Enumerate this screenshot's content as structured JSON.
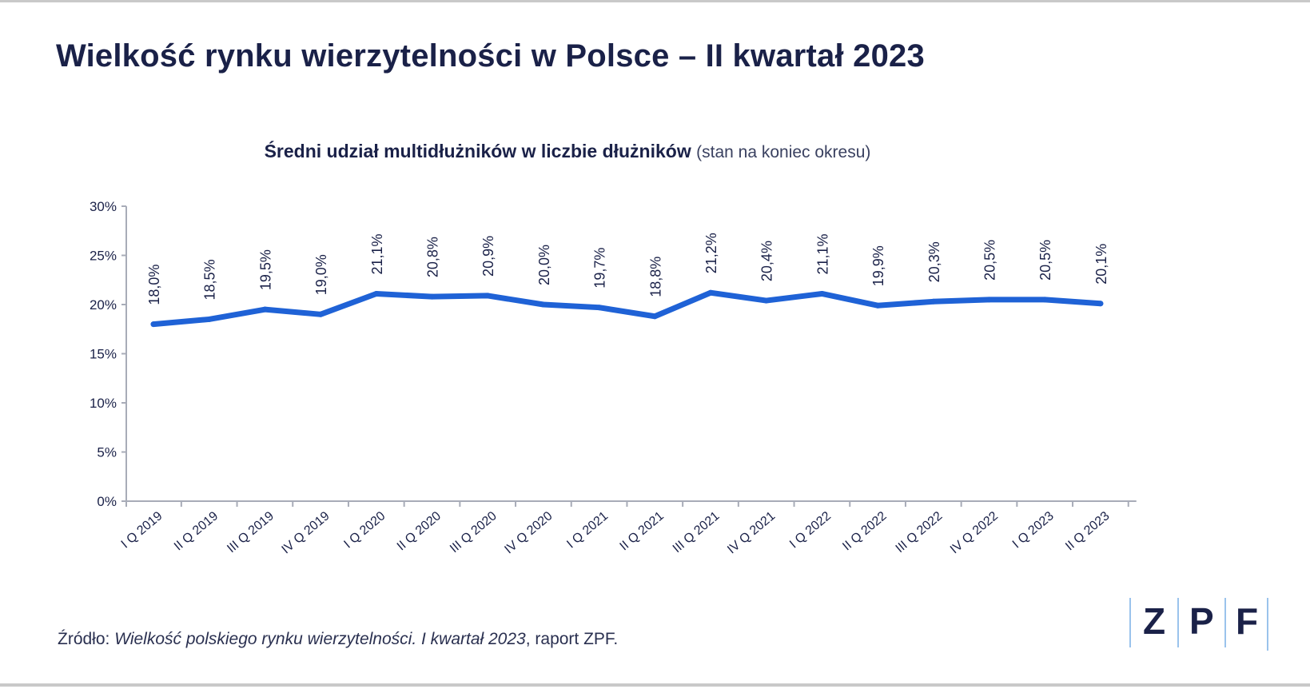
{
  "title": "Wielkość rynku wierzytelności w Polsce – II kwartał 2023",
  "chart_data": {
    "type": "line",
    "title_bold": "Średni udział multidłużników w liczbie dłużników",
    "title_note": "(stan na koniec okresu)",
    "categories": [
      "I Q 2019",
      "II Q 2019",
      "III Q 2019",
      "IV Q 2019",
      "I Q 2020",
      "II Q 2020",
      "III Q 2020",
      "IV Q 2020",
      "I Q 2021",
      "II Q 2021",
      "III Q 2021",
      "IV Q 2021",
      "I Q 2022",
      "II Q 2022",
      "III Q 2022",
      "IV Q 2022",
      "I Q 2023",
      "II Q 2023"
    ],
    "values": [
      18.0,
      18.5,
      19.5,
      19.0,
      21.1,
      20.8,
      20.9,
      20.0,
      19.7,
      18.8,
      21.2,
      20.4,
      21.1,
      19.9,
      20.3,
      20.5,
      20.5,
      20.1
    ],
    "data_labels": [
      "18,0%",
      "18,5%",
      "19,5%",
      "19,0%",
      "21,1%",
      "20,8%",
      "20,9%",
      "20,0%",
      "19,7%",
      "18,8%",
      "21,2%",
      "20,4%",
      "21,1%",
      "19,9%",
      "20,3%",
      "20,5%",
      "20,5%",
      "20,1%"
    ],
    "y_ticks": [
      "0%",
      "5%",
      "10%",
      "15%",
      "20%",
      "25%",
      "30%"
    ],
    "ylim": [
      0,
      30
    ],
    "grid": false,
    "line_color": "#1f62d6"
  },
  "source": {
    "prefix": "Źródło: ",
    "italic": "Wielkość polskiego rynku wierzytelności. I kwartał 2023",
    "suffix": ", raport ZPF."
  },
  "logo": {
    "letters": [
      "Z",
      "P",
      "F"
    ]
  }
}
